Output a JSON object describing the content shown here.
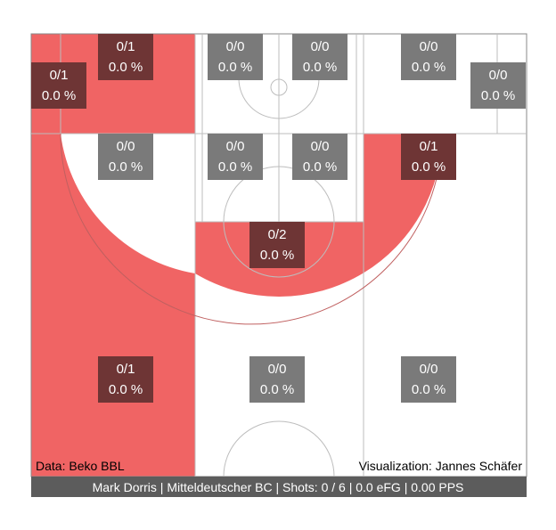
{
  "chart_data": {
    "type": "shot-chart",
    "title": "",
    "colors": {
      "zone_miss_fill": "#f06464",
      "zone_empty_fill": "#ffffff",
      "box_attempted": "#6e3535",
      "box_empty": "#7a7a7a",
      "lines": "#bdbdbd",
      "footer_bg": "#5c5c5c",
      "text_light": "#ffffff",
      "text_dark": "#000000"
    },
    "zones": [
      {
        "id": "corner3-left-upper",
        "made": 0,
        "attempts": 1,
        "fg_pct_label": "0.0 %",
        "made_att_label": "0/1",
        "filled": true
      },
      {
        "id": "corner3-left-lower",
        "made": 0,
        "attempts": 1,
        "fg_pct_label": "0.0 %",
        "made_att_label": "0/1",
        "filled": true
      },
      {
        "id": "baseline-mid-left",
        "made": 0,
        "attempts": 0,
        "fg_pct_label": "0.0 %",
        "made_att_label": "0/0",
        "filled": false
      },
      {
        "id": "baseline-paint-left",
        "made": 0,
        "attempts": 0,
        "fg_pct_label": "0.0 %",
        "made_att_label": "0/0",
        "filled": false
      },
      {
        "id": "baseline-paint-right",
        "made": 0,
        "attempts": 0,
        "fg_pct_label": "0.0 %",
        "made_att_label": "0/0",
        "filled": false
      },
      {
        "id": "baseline-mid-right",
        "made": 0,
        "attempts": 0,
        "fg_pct_label": "0.0 %",
        "made_att_label": "0/0",
        "filled": false
      },
      {
        "id": "corner3-right",
        "made": 0,
        "attempts": 0,
        "fg_pct_label": "0.0 %",
        "made_att_label": "0/0",
        "filled": false
      },
      {
        "id": "wing2-left",
        "made": 0,
        "attempts": 0,
        "fg_pct_label": "0.0 %",
        "made_att_label": "0/0",
        "filled": false
      },
      {
        "id": "paint-upper-left",
        "made": 0,
        "attempts": 0,
        "fg_pct_label": "0.0 %",
        "made_att_label": "0/0",
        "filled": false
      },
      {
        "id": "paint-upper-right",
        "made": 0,
        "attempts": 0,
        "fg_pct_label": "0.0 %",
        "made_att_label": "0/0",
        "filled": false
      },
      {
        "id": "wing2-right",
        "made": 0,
        "attempts": 1,
        "fg_pct_label": "0.0 %",
        "made_att_label": "0/1",
        "filled": true
      },
      {
        "id": "top-key-2",
        "made": 0,
        "attempts": 2,
        "fg_pct_label": "0.0 %",
        "made_att_label": "0/2",
        "filled": true
      },
      {
        "id": "three-left",
        "made": 0,
        "attempts": 1,
        "fg_pct_label": "0.0 %",
        "made_att_label": "0/1",
        "filled": true
      },
      {
        "id": "three-top",
        "made": 0,
        "attempts": 0,
        "fg_pct_label": "0.0 %",
        "made_att_label": "0/0",
        "filled": false
      },
      {
        "id": "three-right",
        "made": 0,
        "attempts": 0,
        "fg_pct_label": "0.0 %",
        "made_att_label": "0/0",
        "filled": false
      }
    ],
    "source_label": "Data: Beko BBL",
    "credit_label": "Visualization: Jannes Schäfer",
    "footer_label": "Mark Dorris | Mitteldeutscher BC | Shots: 0 / 6 | 0.0 eFG | 0.00 PPS"
  }
}
